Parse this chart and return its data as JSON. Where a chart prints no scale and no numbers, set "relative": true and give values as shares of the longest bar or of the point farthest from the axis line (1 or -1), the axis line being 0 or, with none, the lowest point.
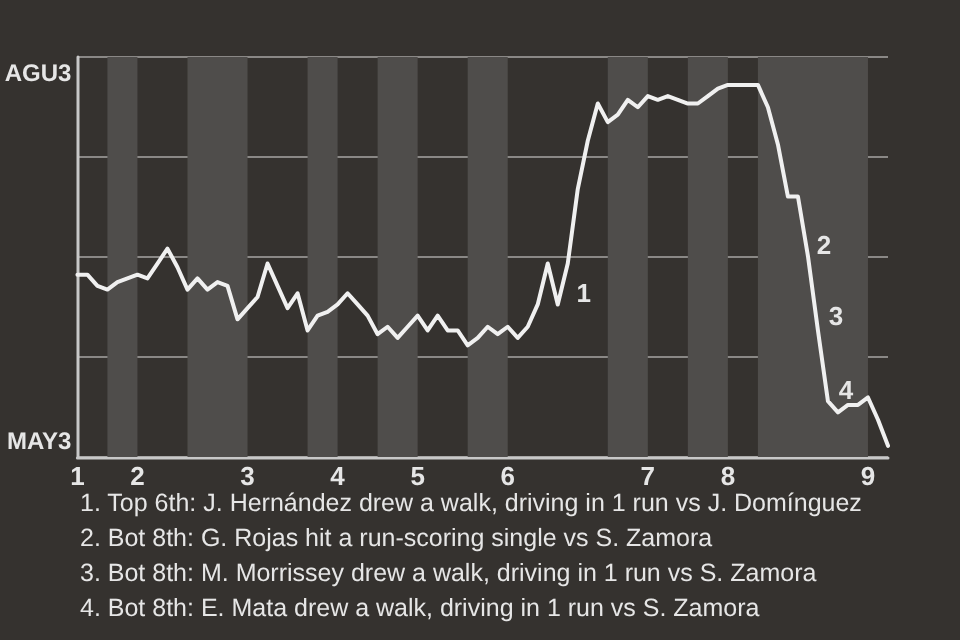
{
  "chart_data": {
    "type": "line",
    "relative": true,
    "categories": [
      "1",
      null,
      null,
      null,
      null,
      null,
      "2",
      null,
      null,
      null,
      null,
      null,
      null,
      null,
      null,
      null,
      null,
      "3",
      null,
      null,
      null,
      null,
      null,
      null,
      null,
      null,
      "4",
      null,
      null,
      null,
      null,
      null,
      null,
      null,
      "5",
      null,
      null,
      null,
      null,
      null,
      null,
      null,
      null,
      "6",
      null,
      null,
      null,
      null,
      null,
      null,
      null,
      null,
      null,
      null,
      null,
      null,
      null,
      "7",
      null,
      null,
      null,
      null,
      null,
      null,
      null,
      "8",
      null,
      null,
      null,
      null,
      null,
      null,
      null,
      null,
      null,
      null,
      null,
      null,
      null,
      "9",
      null,
      null
    ],
    "series": [
      {
        "color": "#f0f0f0",
        "values": [
          0.49,
          0.49,
          0.46,
          0.45,
          0.47,
          0.48,
          0.49,
          0.48,
          0.52,
          0.56,
          0.51,
          0.45,
          0.48,
          0.45,
          0.47,
          0.46,
          0.37,
          0.4,
          0.43,
          0.52,
          0.46,
          0.4,
          0.44,
          0.34,
          0.38,
          0.39,
          0.41,
          0.44,
          0.41,
          0.38,
          0.33,
          0.35,
          0.32,
          0.35,
          0.38,
          0.34,
          0.38,
          0.34,
          0.34,
          0.3,
          0.32,
          0.35,
          0.33,
          0.35,
          0.32,
          0.35,
          0.41,
          0.52,
          0.41,
          0.52,
          0.72,
          0.85,
          0.95,
          0.9,
          0.92,
          0.96,
          0.94,
          0.97,
          0.96,
          0.97,
          0.96,
          0.95,
          0.95,
          0.97,
          0.99,
          1,
          1,
          1,
          1,
          0.94,
          0.84,
          0.7,
          0.7,
          0.54,
          0.34,
          0.15,
          0.12,
          0.14,
          0.14,
          0.16,
          0.1,
          0.03
        ]
      }
    ],
    "grid": "y",
    "marker": "none",
    "line_style": "solid",
    "annotations": [
      "AGU3",
      "MAY3",
      "1",
      "2",
      "3",
      "4",
      "1. Top 6th: J. Hernández drew a walk, driving in 1 run vs J. Domínguez",
      "2. Bot 8th: G. Rojas hit a run-scoring single vs S. Zamora",
      "3. Bot 8th: M. Morrissey drew a walk, driving in 1 run vs S. Zamora",
      "4. Bot 8th: E. Mata drew a walk, driving in 1 run vs S. Zamora"
    ]
  }
}
